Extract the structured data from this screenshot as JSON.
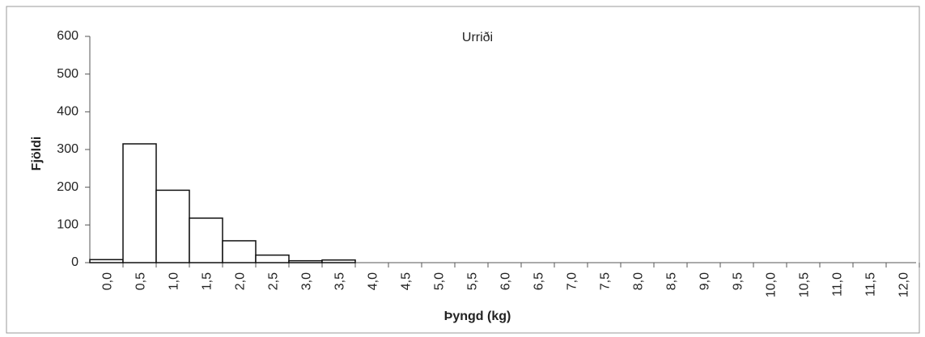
{
  "chart_data": {
    "type": "bar",
    "title": "Urriði",
    "y_label": "Fjöldi",
    "x_label": "Þyngd (kg)",
    "categories": [
      "0,0",
      "0,5",
      "1,0",
      "1,5",
      "2,0",
      "2,5",
      "3,0",
      "3,5",
      "4,0",
      "4,5",
      "5,0",
      "5,5",
      "6,0",
      "6,5",
      "7,0",
      "7,5",
      "8,0",
      "8,5",
      "9,0",
      "9,5",
      "10,0",
      "10,5",
      "11,0",
      "11,5",
      "12,0"
    ],
    "values": [
      8,
      315,
      192,
      118,
      58,
      20,
      5,
      7,
      0,
      0,
      0,
      0,
      0,
      0,
      0,
      0,
      0,
      0,
      0,
      0,
      0,
      0,
      0,
      0,
      0
    ],
    "color": "#ffffff",
    "ylim": [
      0,
      600
    ],
    "yticks": [
      0,
      100,
      200,
      300,
      400,
      500,
      600
    ],
    "grid": false
  }
}
